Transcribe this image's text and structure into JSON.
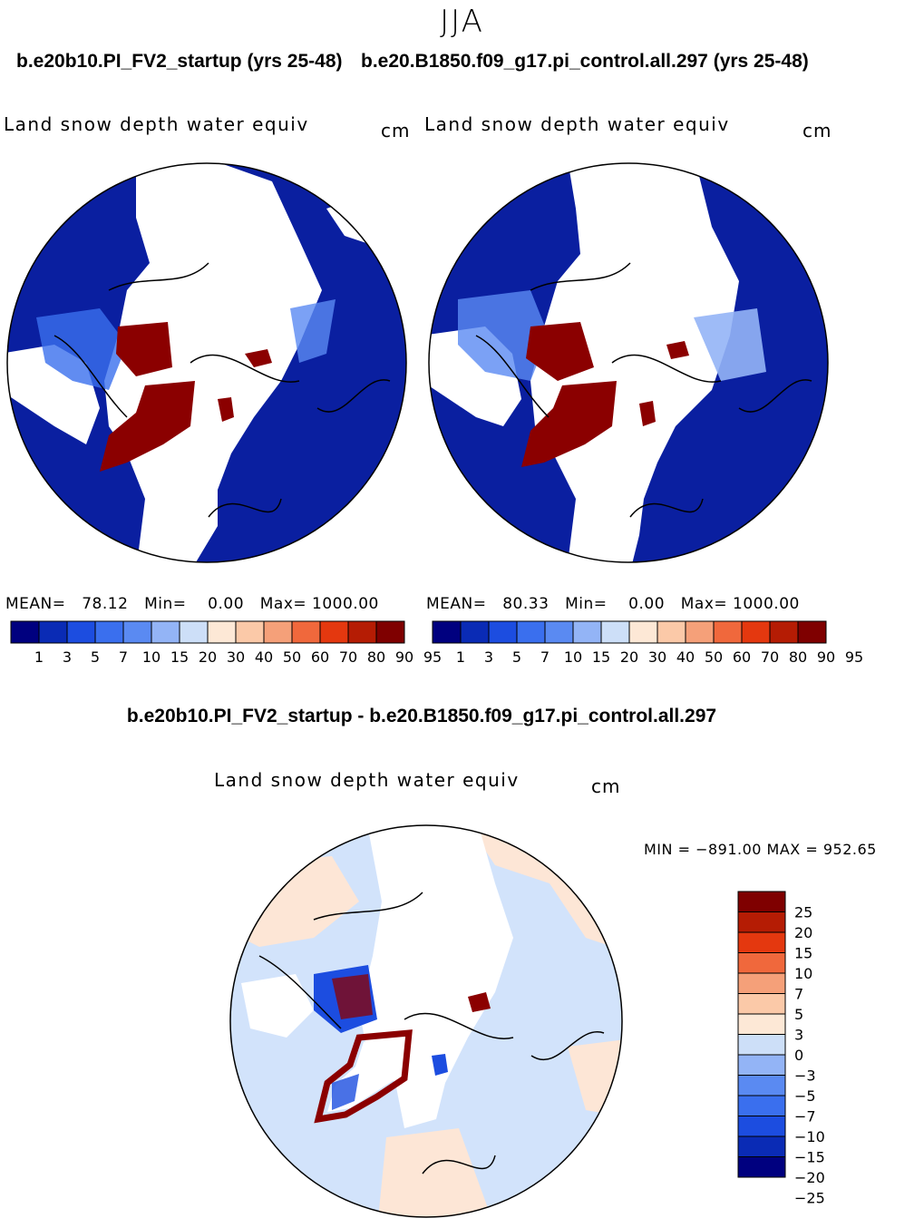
{
  "season": "JJA",
  "panels": [
    {
      "case": "b.e20b10.PI_FV2_startup (yrs 25-48)",
      "variable": "Land snow depth water equiv",
      "units": "cm",
      "stats": {
        "mean_label": "MEAN=",
        "mean": "78.12",
        "min_label": "Min=",
        "min": "0.00",
        "max_label": "Max=",
        "max": "1000.00"
      }
    },
    {
      "case": "b.e20.B1850.f09_g17.pi_control.all.297 (yrs 25-48)",
      "variable": "Land snow depth water equiv",
      "units": "cm",
      "stats": {
        "mean_label": "MEAN=",
        "mean": "80.33",
        "min_label": "Min=",
        "min": "0.00",
        "max_label": "Max=",
        "max": "1000.00"
      }
    }
  ],
  "diff": {
    "title": "b.e20b10.PI_FV2_startup - b.e20.B1850.f09_g17.pi_control.all.297",
    "variable": "Land snow depth water equiv",
    "units": "cm",
    "minmax": "MIN = −891.00  MAX = 952.65"
  },
  "colors": {
    "abs_scale": [
      "#00007f",
      "#0a2bb5",
      "#1c4de0",
      "#3a6fee",
      "#5a8af2",
      "#93b4f6",
      "#cddff8",
      "#fde8d6",
      "#fbc9a8",
      "#f5a079",
      "#f0683c",
      "#e4380f",
      "#b51c04",
      "#7f0000"
    ],
    "diff_scale": [
      "#00007f",
      "#0a2bb5",
      "#1c4de0",
      "#3a6fee",
      "#5a8af2",
      "#93b4f6",
      "#cddff8",
      "#fde8d6",
      "#fbc9a8",
      "#f5a079",
      "#f0683c",
      "#e4380f",
      "#b51c04",
      "#7f0000"
    ],
    "map_blue": "#0a1fa0",
    "map_red": "#8b0000",
    "diff_bg_blue": "#d2e3fb",
    "diff_bg_peach": "#fde6d6"
  },
  "chart_data": [
    {
      "type": "heatmap",
      "title": "Land snow depth water equiv",
      "subtitle": "b.e20b10.PI_FV2_startup (yrs 25-48)",
      "projection": "north polar stereographic",
      "units": "cm",
      "mean": 78.12,
      "min": 0.0,
      "max": 1000.0,
      "colorbar_levels": [
        "1",
        "3",
        "5",
        "7",
        "10",
        "15",
        "20",
        "30",
        "40",
        "50",
        "60",
        "70",
        "80",
        "90",
        "95"
      ]
    },
    {
      "type": "heatmap",
      "title": "Land snow depth water equiv",
      "subtitle": "b.e20.B1850.f09_g17.pi_control.all.297 (yrs 25-48)",
      "projection": "north polar stereographic",
      "units": "cm",
      "mean": 80.33,
      "min": 0.0,
      "max": 1000.0,
      "colorbar_levels": [
        "1",
        "3",
        "5",
        "7",
        "10",
        "15",
        "20",
        "30",
        "40",
        "50",
        "60",
        "70",
        "80",
        "90",
        "95"
      ]
    },
    {
      "type": "heatmap",
      "title": "Land snow depth water equiv",
      "subtitle": "b.e20b10.PI_FV2_startup - b.e20.B1850.f09_g17.pi_control.all.297",
      "projection": "north polar stereographic",
      "units": "cm",
      "min": -891.0,
      "max": 952.65,
      "colorbar_levels": [
        "25",
        "20",
        "15",
        "10",
        "7",
        "5",
        "3",
        "0",
        "−3",
        "−5",
        "−7",
        "−10",
        "−15",
        "−20",
        "−25"
      ]
    }
  ]
}
